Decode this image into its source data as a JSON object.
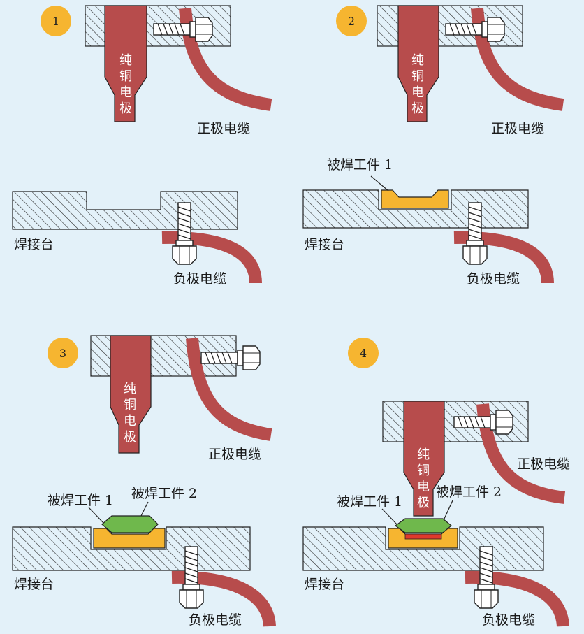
{
  "colors": {
    "background": "#e3f1f9",
    "copper": "#b74c4c",
    "workpiece1": "#f6b530",
    "workpiece2": "#6fb84c",
    "weld_nugget": "#e03a2c",
    "step_badge": "#f6b530"
  },
  "steps": [
    {
      "number": "1",
      "electrode": [
        "纯",
        "铜",
        "电",
        "极"
      ],
      "positive_cable": "正极电缆",
      "table": "焊接台",
      "negative_cable": "负极电缆"
    },
    {
      "number": "2",
      "electrode": [
        "纯",
        "铜",
        "电",
        "极"
      ],
      "positive_cable": "正极电缆",
      "table": "焊接台",
      "negative_cable": "负极电缆",
      "workpiece1": "被焊工件 1"
    },
    {
      "number": "3",
      "electrode": [
        "纯",
        "铜",
        "电",
        "极"
      ],
      "positive_cable": "正极电缆",
      "table": "焊接台",
      "negative_cable": "负极电缆",
      "workpiece1": "被焊工件 1",
      "workpiece2": "被焊工件 2"
    },
    {
      "number": "4",
      "electrode": [
        "纯",
        "铜",
        "电",
        "极"
      ],
      "positive_cable": "正极电缆",
      "table": "焊接台",
      "negative_cable": "负极电缆",
      "workpiece1": "被焊工件 1",
      "workpiece2": "被焊工件 2"
    }
  ]
}
